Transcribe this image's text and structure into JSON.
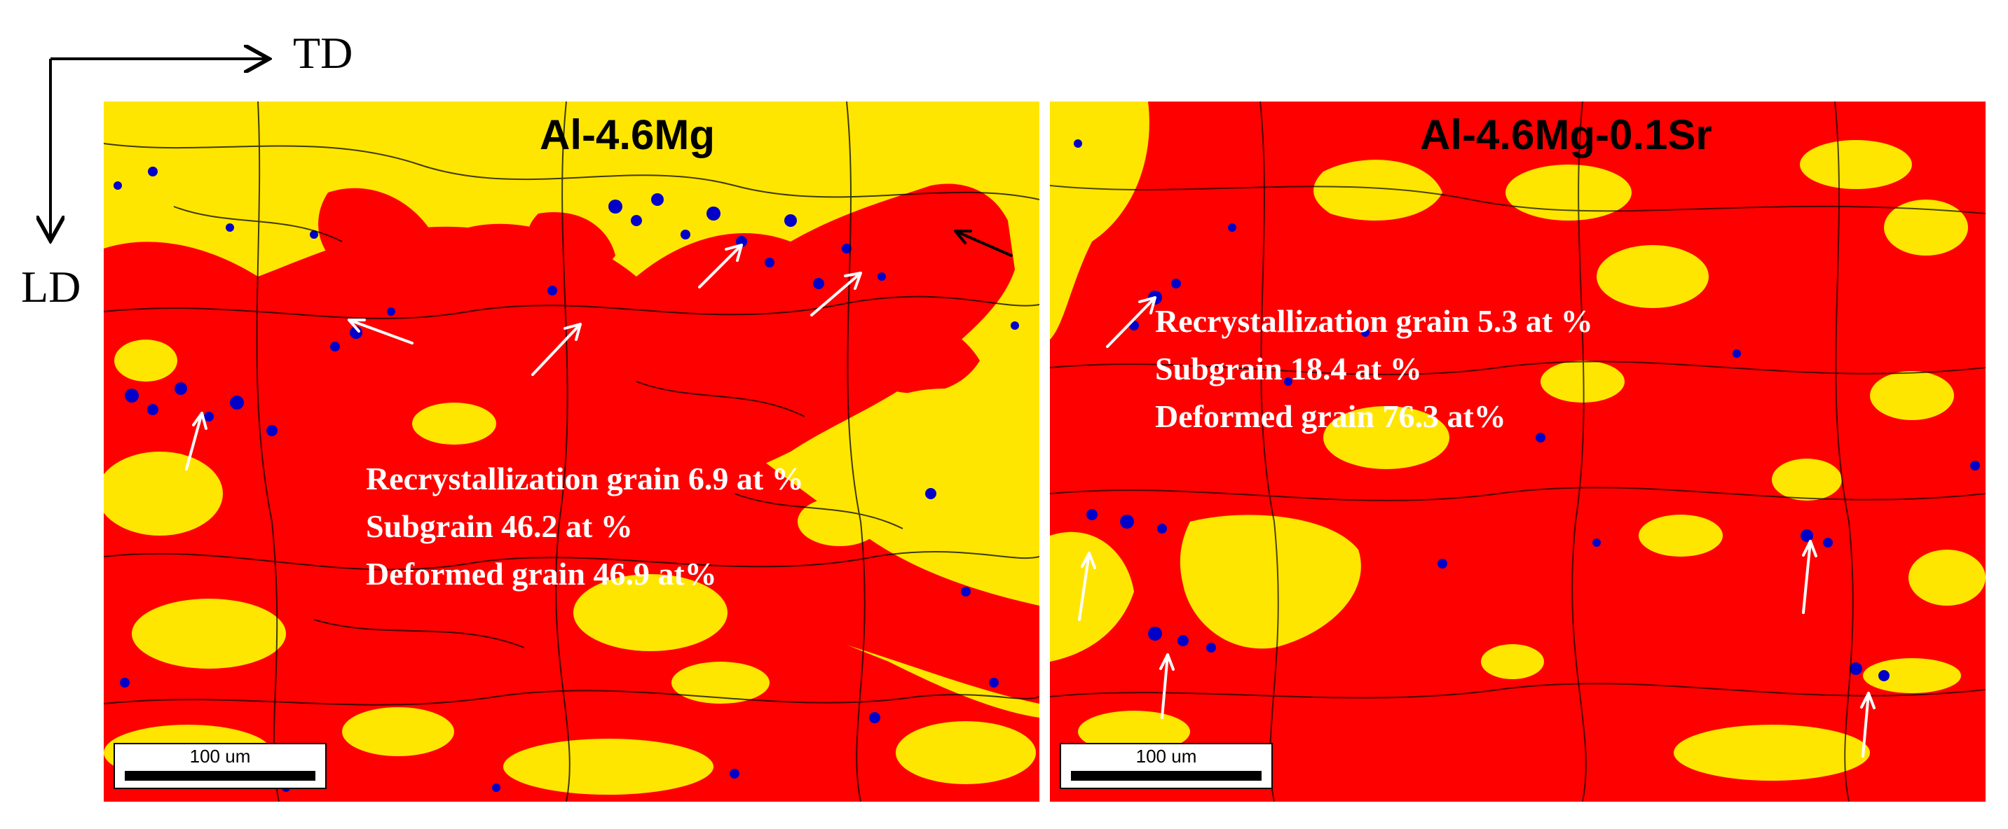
{
  "axes": {
    "horizontal_label": "TD",
    "vertical_label": "LD"
  },
  "colors": {
    "recrystallized": "#ffe600",
    "deformed": "#ff0000",
    "subgrain": "#0000c8",
    "annotation_arrow": "#ffffff",
    "stats_text": "#ffffff"
  },
  "panels": [
    {
      "title": "Al-4.6Mg",
      "stats": [
        "Recrystallization grain  6.9 at %",
        "Subgrain 46.2 at %",
        "Deformed grain 46.9 at%"
      ],
      "scale_bar": "100 um"
    },
    {
      "title": "Al-4.6Mg-0.1Sr",
      "stats": [
        "Recrystallization grain  5.3 at %",
        "Subgrain 18.4 at %",
        "Deformed grain 76.3 at%"
      ],
      "scale_bar": "100 um"
    }
  ]
}
